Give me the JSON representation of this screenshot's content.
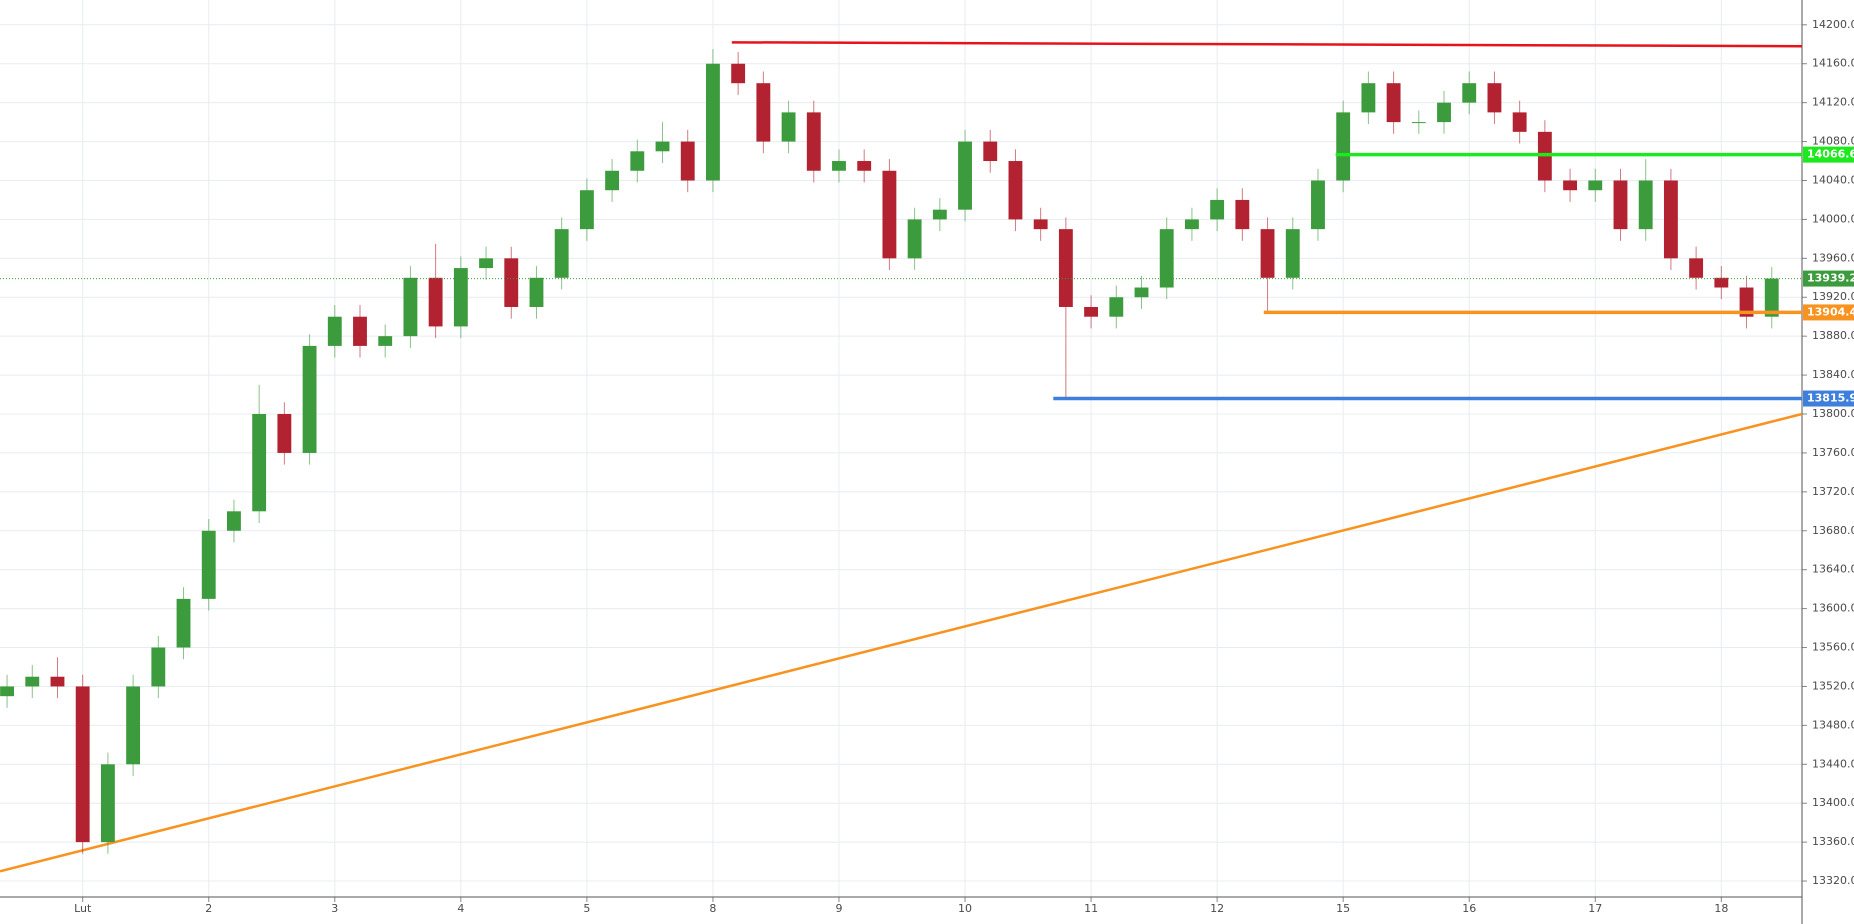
{
  "chart_data": {
    "type": "candlestick",
    "xlim": [
      -0.656,
      13.64
    ],
    "xticks": [
      {
        "value": 0,
        "label": "Lut"
      },
      {
        "value": 1,
        "label": "2"
      },
      {
        "value": 2,
        "label": "3"
      },
      {
        "value": 3,
        "label": "4"
      },
      {
        "value": 4,
        "label": "5"
      },
      {
        "value": 5,
        "label": "8"
      },
      {
        "value": 6,
        "label": "9"
      },
      {
        "value": 7,
        "label": "10"
      },
      {
        "value": 8,
        "label": "11"
      },
      {
        "value": 9,
        "label": "12"
      },
      {
        "value": 10,
        "label": "15"
      },
      {
        "value": 11,
        "label": "16"
      },
      {
        "value": 12,
        "label": "17"
      },
      {
        "value": 13,
        "label": "18"
      }
    ],
    "ylim": [
      13303.6,
      14225.5
    ],
    "yticks": [
      {
        "value": 13320,
        "label": "13320.0"
      },
      {
        "value": 13360,
        "label": "13360.0"
      },
      {
        "value": 13400,
        "label": "13400.0"
      },
      {
        "value": 13440,
        "label": "13440.0"
      },
      {
        "value": 13480,
        "label": "13480.0"
      },
      {
        "value": 13520,
        "label": "13520.0"
      },
      {
        "value": 13560,
        "label": "13560.0"
      },
      {
        "value": 13600,
        "label": "13600.0"
      },
      {
        "value": 13640,
        "label": "13640.0"
      },
      {
        "value": 13680,
        "label": "13680.0"
      },
      {
        "value": 13720,
        "label": "13720.0"
      },
      {
        "value": 13760,
        "label": "13760.0"
      },
      {
        "value": 13800,
        "label": "13800.0"
      },
      {
        "value": 13840,
        "label": "13840.0"
      },
      {
        "value": 13880,
        "label": "13880.0"
      },
      {
        "value": 13920,
        "label": "13920.0"
      },
      {
        "value": 13960,
        "label": "13960.0"
      },
      {
        "value": 14000,
        "label": "14000.0"
      },
      {
        "value": 14040,
        "label": "14040.0"
      },
      {
        "value": 14080,
        "label": "14080.0"
      },
      {
        "value": 14120,
        "label": "14120.0"
      },
      {
        "value": 14160,
        "label": "14160.0"
      },
      {
        "value": 14200,
        "label": "14200.0"
      }
    ],
    "grid": true,
    "up_color": "#3c9b3c",
    "down_color": "#b32230",
    "x": [
      -0.6,
      -0.4,
      -0.2,
      0,
      0.2,
      0.4,
      0.6,
      0.8,
      1,
      1.2,
      1.4,
      1.6,
      1.8,
      2,
      2.2,
      2.4,
      2.6,
      2.8,
      3,
      3.2,
      3.4,
      3.6,
      3.8,
      4,
      4.2,
      4.4,
      4.6,
      4.8,
      5,
      5.2,
      5.4,
      5.6,
      5.8,
      6,
      6.2,
      6.4,
      6.6,
      6.8,
      7,
      7.2,
      7.4,
      7.6,
      7.8,
      8,
      8.2,
      8.4,
      8.6,
      8.8,
      9,
      9.2,
      9.4,
      9.6,
      9.8,
      10,
      10.2,
      10.4,
      10.6,
      10.8,
      11,
      11.2,
      11.4,
      11.6,
      11.8,
      12,
      12.2,
      12.4,
      12.6,
      12.8,
      13,
      13.2,
      13.4
    ],
    "open": [
      13510,
      13520,
      13530,
      13520,
      13360,
      13440,
      13520,
      13560,
      13610,
      13680,
      13700,
      13800,
      13760,
      13870,
      13900,
      13870,
      13880,
      13940,
      13890,
      13950,
      13960,
      13910,
      13940,
      13990,
      14030,
      14050,
      14070,
      14080,
      14040,
      14160,
      14140,
      14080,
      14110,
      14050,
      14060,
      14050,
      13960,
      14000,
      14010,
      14080,
      14060,
      14000,
      13990,
      13910,
      13900,
      13920,
      13930,
      13990,
      14000,
      14020,
      13990,
      13940,
      13990,
      14040,
      14110,
      14140,
      14100,
      14100,
      14120,
      14140,
      14110,
      14090,
      14040,
      14030,
      14040,
      13990,
      14040,
      13960,
      13940,
      13930,
      13900
    ],
    "high": [
      13532,
      13542,
      13550,
      13532,
      13452,
      13532,
      13572,
      13622,
      13692,
      13712,
      13830,
      13812,
      13882,
      13912,
      13912,
      13892,
      13952,
      13975,
      13962,
      13972,
      13972,
      13952,
      14002,
      14042,
      14062,
      14082,
      14100,
      14092,
      14175,
      14172,
      14152,
      14122,
      14122,
      14072,
      14072,
      14062,
      14012,
      14022,
      14092,
      14092,
      14072,
      14012,
      14002,
      13922,
      13932,
      13942,
      14002,
      14012,
      14032,
      14032,
      14002,
      14002,
      14052,
      14122,
      14152,
      14152,
      14112,
      14132,
      14152,
      14152,
      14122,
      14102,
      14052,
      14052,
      14052,
      14062,
      14052,
      13972,
      13952,
      13942,
      13951
    ],
    "low": [
      13498,
      13508,
      13508,
      13348,
      13348,
      13428,
      13508,
      13548,
      13598,
      13668,
      13688,
      13748,
      13748,
      13858,
      13858,
      13858,
      13868,
      13878,
      13878,
      13938,
      13898,
      13898,
      13928,
      13978,
      14018,
      14038,
      14058,
      14028,
      14028,
      14128,
      14068,
      14068,
      14038,
      14038,
      14038,
      13948,
      13948,
      13988,
      13998,
      14048,
      13988,
      13978,
      13815,
      13888,
      13888,
      13908,
      13918,
      13978,
      13988,
      13978,
      13905,
      13928,
      13978,
      14028,
      14098,
      14088,
      14088,
      14088,
      14108,
      14098,
      14078,
      14028,
      14018,
      14018,
      13978,
      13978,
      13948,
      13928,
      13918,
      13888,
      13888
    ],
    "close": [
      13520,
      13530,
      13520,
      13360,
      13440,
      13520,
      13560,
      13610,
      13680,
      13700,
      13800,
      13760,
      13870,
      13900,
      13870,
      13880,
      13940,
      13890,
      13950,
      13960,
      13910,
      13940,
      13990,
      14030,
      14050,
      14070,
      14080,
      14040,
      14160,
      14140,
      14080,
      14110,
      14050,
      14060,
      14050,
      13960,
      14000,
      14010,
      14080,
      14060,
      14000,
      13990,
      13910,
      13900,
      13920,
      13930,
      13990,
      14000,
      14020,
      13990,
      13940,
      13990,
      14040,
      14110,
      14140,
      14100,
      14100,
      14120,
      14140,
      14110,
      14090,
      14040,
      14030,
      14040,
      13990,
      14040,
      13960,
      13940,
      13930,
      13900,
      13939.2
    ],
    "last_color": "#3c9b3c",
    "lines": [
      {
        "color": "#e8121a",
        "x": [
          5.15,
          13.64
        ],
        "y": [
          14182,
          14178
        ]
      },
      {
        "color": "#f7931e",
        "x": [
          -0.656,
          13.64
        ],
        "y": [
          13330,
          13800
        ]
      }
    ],
    "levels": [
      {
        "value": 14066.6,
        "start": 9.94,
        "color": "#1ee81e"
      },
      {
        "value": 13904.4,
        "start": 9.37,
        "color": "#f7931e"
      },
      {
        "value": 13815.9,
        "start": 7.7,
        "color": "#3f7fdc"
      }
    ]
  }
}
